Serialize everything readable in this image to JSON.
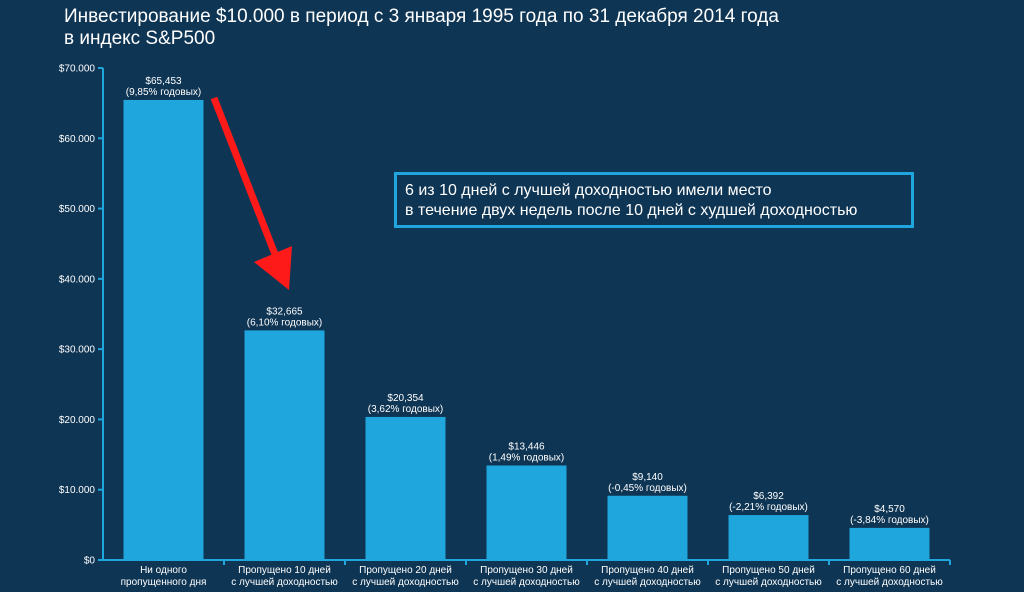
{
  "title": {
    "line1": "Инвестирование $10.000 в период с 3 января 1995 года по 31 декабря 2014 года",
    "line2": "в индекс S&P500"
  },
  "callout": {
    "line1": "6 из 10 дней с лучшей доходностью имели место",
    "line2": "в течение двух недель после 10 дней с худшей доходностью"
  },
  "colors": {
    "background": "#0f3554",
    "bar": "#1ea6dd",
    "arrow": "#ff1a1a",
    "callout_border": "#1ea6dd"
  },
  "chart_data": {
    "type": "bar",
    "ylim": [
      0,
      70000
    ],
    "yticks": [
      {
        "value": 0,
        "label": "$0"
      },
      {
        "value": 10000,
        "label": "$10.000"
      },
      {
        "value": 20000,
        "label": "$20.000"
      },
      {
        "value": 30000,
        "label": "$30.000"
      },
      {
        "value": 40000,
        "label": "$40.000"
      },
      {
        "value": 50000,
        "label": "$50.000"
      },
      {
        "value": 60000,
        "label": "$60.000"
      },
      {
        "value": 70000,
        "label": "$70.000"
      }
    ],
    "categories": [
      [
        "Ни одного",
        "пропущенного дня"
      ],
      [
        "Пропущено 10 дней",
        "с лучшей доходностью"
      ],
      [
        "Пропущено 20 дней",
        "с лучшей доходностью"
      ],
      [
        "Пропущено 30 дней",
        "с лучшей доходностью"
      ],
      [
        "Пропущено 40 дней",
        "с лучшей доходностью"
      ],
      [
        "Пропущено 50 дней",
        "с лучшей доходностью"
      ],
      [
        "Пропущено 60 дней",
        "с лучшей доходностью"
      ]
    ],
    "values": [
      65453,
      32665,
      20354,
      13446,
      9140,
      6392,
      4570
    ],
    "data_labels": [
      [
        "$65,453",
        "(9,85% годовых)"
      ],
      [
        "$32,665",
        "(6,10% годовых)"
      ],
      [
        "$20,354",
        "(3,62% годовых)"
      ],
      [
        "$13,446",
        "(1,49% годовых)"
      ],
      [
        "$9,140",
        "(-0,45% годовых)"
      ],
      [
        "$6,392",
        "(-2,21% годовых)"
      ],
      [
        "$4,570",
        "(-3,84% годовых)"
      ]
    ],
    "grid": false,
    "legend": "none"
  }
}
